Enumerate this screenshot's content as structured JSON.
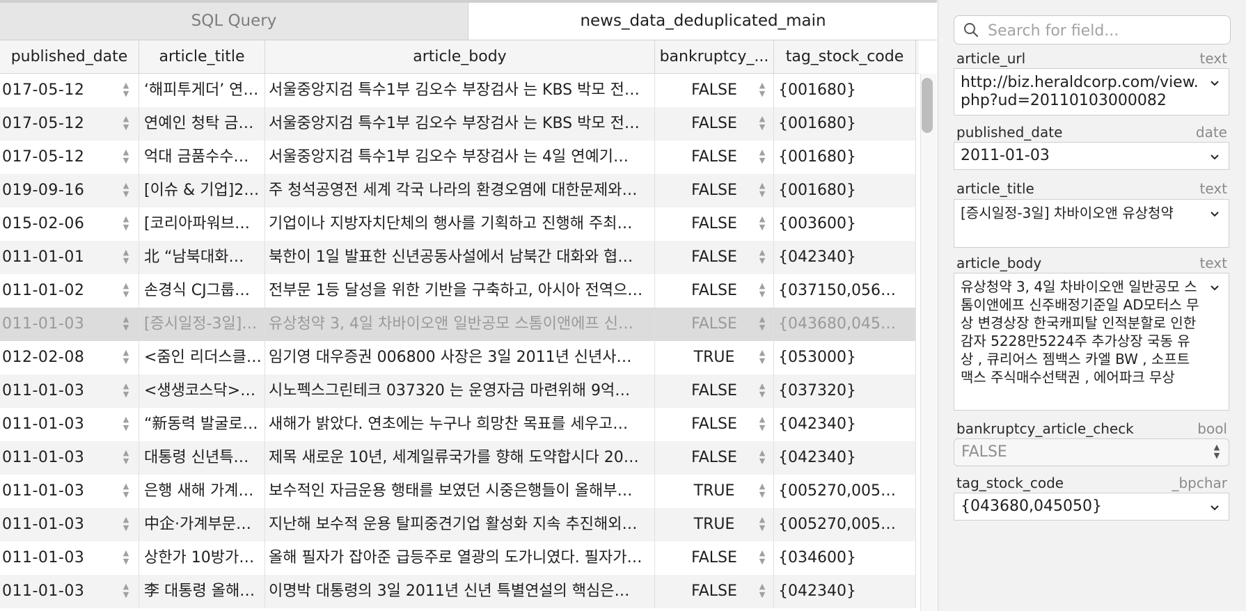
{
  "tabs": {
    "sql": "SQL Query",
    "table": "news_data_deduplicated_main"
  },
  "columns": [
    "published_date",
    "article_title",
    "article_body",
    "bankruptcy_...",
    "tag_stock_code"
  ],
  "rows": [
    [
      "017-05-12",
      "‘해피투게더’ 연…",
      "서울중앙지검 특수1부 김오수 부장검사 는 KBS 박모 전…",
      "FALSE",
      "{001680}"
    ],
    [
      "017-05-12",
      "연예인 청탁 금…",
      "서울중앙지검 특수1부 김오수 부장검사 는 KBS 박모 전…",
      "FALSE",
      "{001680}"
    ],
    [
      "017-05-12",
      "억대 금품수수…",
      "서울중앙지검 특수1부 김오수 부장검사 는 4일 연예기…",
      "FALSE",
      "{001680}"
    ],
    [
      "019-09-16",
      "[이슈 & 기업]2…",
      "주 청석공영전 세계 각국 나라의 환경오염에 대한문제와…",
      "FALSE",
      "{001680}"
    ],
    [
      "015-02-06",
      "[코리아파워브…",
      "기업이나 지방자치단체의 행사를 기획하고 진행해 주최…",
      "FALSE",
      "{003600}"
    ],
    [
      "011-01-01",
      "北 “남북대화…",
      "북한이 1일 발표한 신년공동사설에서 남북간 대화와 협…",
      "FALSE",
      "{042340}"
    ],
    [
      "011-01-02",
      "손경식 CJ그룹…",
      "전부문 1등 달성을 위한 기반을 구축하고, 아시아 전역으…",
      "FALSE",
      "{037150,056…"
    ],
    [
      "011-01-03",
      "[증시일정-3일]…",
      "유상청약 3, 4일 차바이오앤 일반공모 스톰이앤에프 신…",
      "FALSE",
      "{043680,045…"
    ],
    [
      "012-02-08",
      "<줌인 리더스클…",
      "임기영 대우증권 006800 사장은 3일 2011년 신년사…",
      "TRUE",
      "{053000}"
    ],
    [
      "011-01-03",
      "<생생코스닥>…",
      "시노펙스그린테크 037320 는 운영자금 마련위해 9억…",
      "FALSE",
      "{037320}"
    ],
    [
      "011-01-03",
      "“新동력 발굴로…",
      "새해가 밝았다. 연초에는 누구나 희망찬 목표를 세우고…",
      "FALSE",
      "{042340}"
    ],
    [
      "011-01-03",
      "대통령 신년특…",
      "제목 새로운 10년, 세계일류국가를 향해 도약합시다 20…",
      "FALSE",
      "{042340}"
    ],
    [
      "011-01-03",
      "은행 새해 가계…",
      "보수적인 자금운용 행태를 보였던 시중은행들이 올해부…",
      "TRUE",
      "{005270,005…"
    ],
    [
      "011-01-03",
      "中企·가계부문…",
      "지난해 보수적 운용 탈피중견기업 활성화 지속 추진해외…",
      "TRUE",
      "{005270,005…"
    ],
    [
      "011-01-03",
      "상한가 10방가…",
      "올해 필자가 잡아준 급등주로 열광의 도가니였다. 필자가…",
      "FALSE",
      "{034600}"
    ],
    [
      "011-01-03",
      "李 대통령 올해…",
      "이명박 대통령의 3일 2011년 신년 특별연설의 핵심은…",
      "FALSE",
      "{042340}"
    ]
  ],
  "selected_row": 7,
  "search": {
    "placeholder": "Search for field..."
  },
  "fields": {
    "article_url": {
      "label": "article_url",
      "type": "text",
      "value": "http://biz.heraldcorp.com/view.php?ud=20110103000082"
    },
    "published_date": {
      "label": "published_date",
      "type": "date",
      "value": "2011-01-03"
    },
    "article_title": {
      "label": "article_title",
      "type": "text",
      "value": "[증시일정-3일] 차바이오앤 유상청약"
    },
    "article_body": {
      "label": "article_body",
      "type": "text",
      "value": "유상청약 3, 4일 차바이오앤 일반공모 스톰이앤에프 신주배정기준일 AD모터스 무상 변경상장 한국캐피탈 인적분할로 인한 감자 5228만5224주 추가상장 국동 유상 , 큐리어스 젬백스 카엘 BW , 소프트맥스 주식매수선택권 , 에어파크 무상"
    },
    "bankruptcy_article_check": {
      "label": "bankruptcy_article_check",
      "type": "bool",
      "value": "FALSE"
    },
    "tag_stock_code": {
      "label": "tag_stock_code",
      "type": "_bpchar",
      "value": "{043680,045050}"
    }
  },
  "icons": {
    "search": "search-icon",
    "chevron": "chevron-down-icon",
    "stepper": "up-down-stepper-icon"
  }
}
